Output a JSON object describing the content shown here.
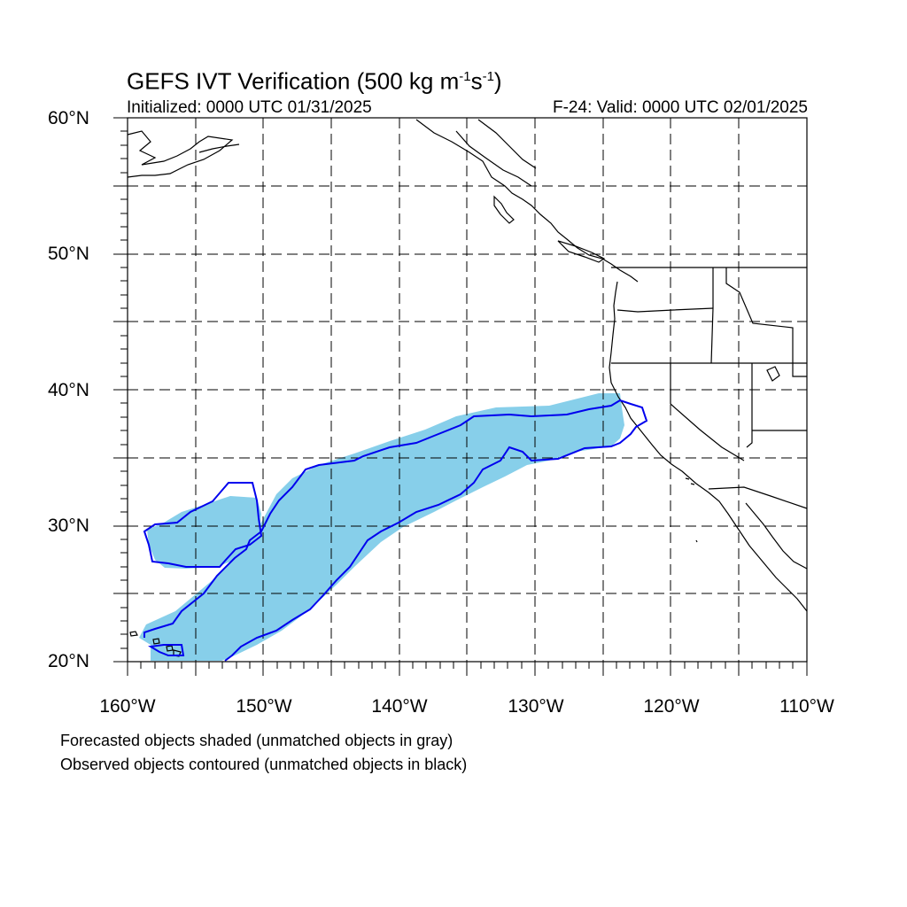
{
  "title": {
    "main": "GEFS IVT Verification (500 kg m",
    "exp1": "-1",
    "mid": "s",
    "exp2": "-1",
    "end": ")"
  },
  "initialized": "Initialized: 0000 UTC 01/31/2025",
  "valid": "F-24: Valid: 0000 UTC 02/01/2025",
  "lat_labels": [
    "60°N",
    "50°N",
    "40°N",
    "30°N",
    "20°N"
  ],
  "lon_labels": [
    "160°W",
    "150°W",
    "140°W",
    "130°W",
    "120°W",
    "110°W"
  ],
  "notes": {
    "forecast": "Forecasted objects shaded (unmatched objects in gray)",
    "observed": "Observed objects contoured (unmatched objects in black)"
  },
  "colors": {
    "forecast_fill": "#87cfea",
    "observed_contour": "#0000ee",
    "coastline": "#000000",
    "grid": "#000000"
  },
  "map_extent": {
    "lon_min": -160,
    "lon_max": -110,
    "lat_min": 20,
    "lat_max": 60
  }
}
